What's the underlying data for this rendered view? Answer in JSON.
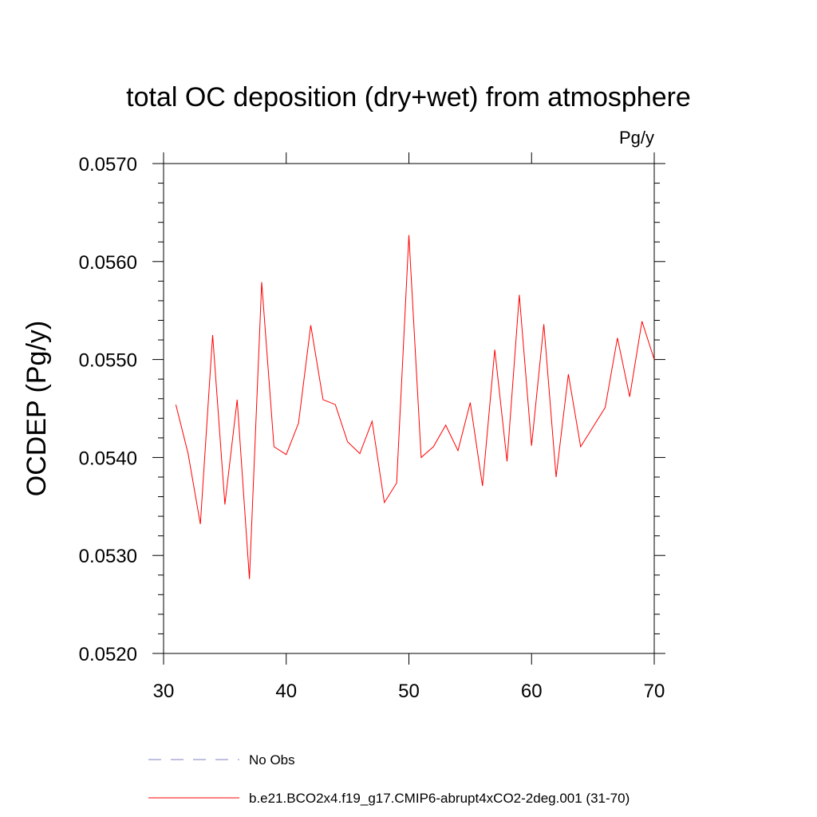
{
  "chart_data": {
    "type": "line",
    "title": "total OC deposition (dry+wet) from atmosphere",
    "units": "Pg/y",
    "xlabel": "",
    "ylabel": "OCDEP  (Pg/y)",
    "xlim": [
      30,
      70
    ],
    "ylim": [
      0.052,
      0.057
    ],
    "xticks": [
      30,
      40,
      50,
      60,
      70
    ],
    "yticks": [
      0.052,
      0.053,
      0.054,
      0.055,
      0.056,
      0.057
    ],
    "ytick_labels": [
      "0.0520",
      "0.0530",
      "0.0540",
      "0.0550",
      "0.0560",
      "0.0570"
    ],
    "series": [
      {
        "name": "b.e21.BCO2x4.f19_g17.CMIP6-abrupt4xCO2-2deg.001 (31-70)",
        "color": "#ff0000",
        "style": "solid",
        "x": [
          31,
          32,
          33,
          34,
          35,
          36,
          37,
          38,
          39,
          40,
          41,
          42,
          43,
          44,
          45,
          46,
          47,
          48,
          49,
          50,
          51,
          52,
          53,
          54,
          55,
          56,
          57,
          58,
          59,
          60,
          61,
          62,
          63,
          64,
          65,
          66,
          67,
          68,
          69,
          70
        ],
        "values": [
          0.05454,
          0.05404,
          0.05332,
          0.05525,
          0.05352,
          0.05459,
          0.05276,
          0.05579,
          0.05411,
          0.05403,
          0.05435,
          0.05535,
          0.05459,
          0.05454,
          0.05416,
          0.05404,
          0.05437,
          0.05354,
          0.05374,
          0.05627,
          0.054,
          0.05411,
          0.05433,
          0.05407,
          0.05456,
          0.05371,
          0.0551,
          0.05396,
          0.05566,
          0.05412,
          0.05536,
          0.0538,
          0.05485,
          0.05411,
          0.05431,
          0.05451,
          0.05522,
          0.05462,
          0.05539,
          0.055
        ]
      }
    ],
    "legend": [
      {
        "label": "No Obs",
        "color": "#8080c0",
        "style": "dashed"
      },
      {
        "label": "b.e21.BCO2x4.f19_g17.CMIP6-abrupt4xCO2-2deg.001 (31-70)",
        "color": "#ff0000",
        "style": "solid"
      }
    ],
    "legend_position": "bottom",
    "grid": false
  }
}
